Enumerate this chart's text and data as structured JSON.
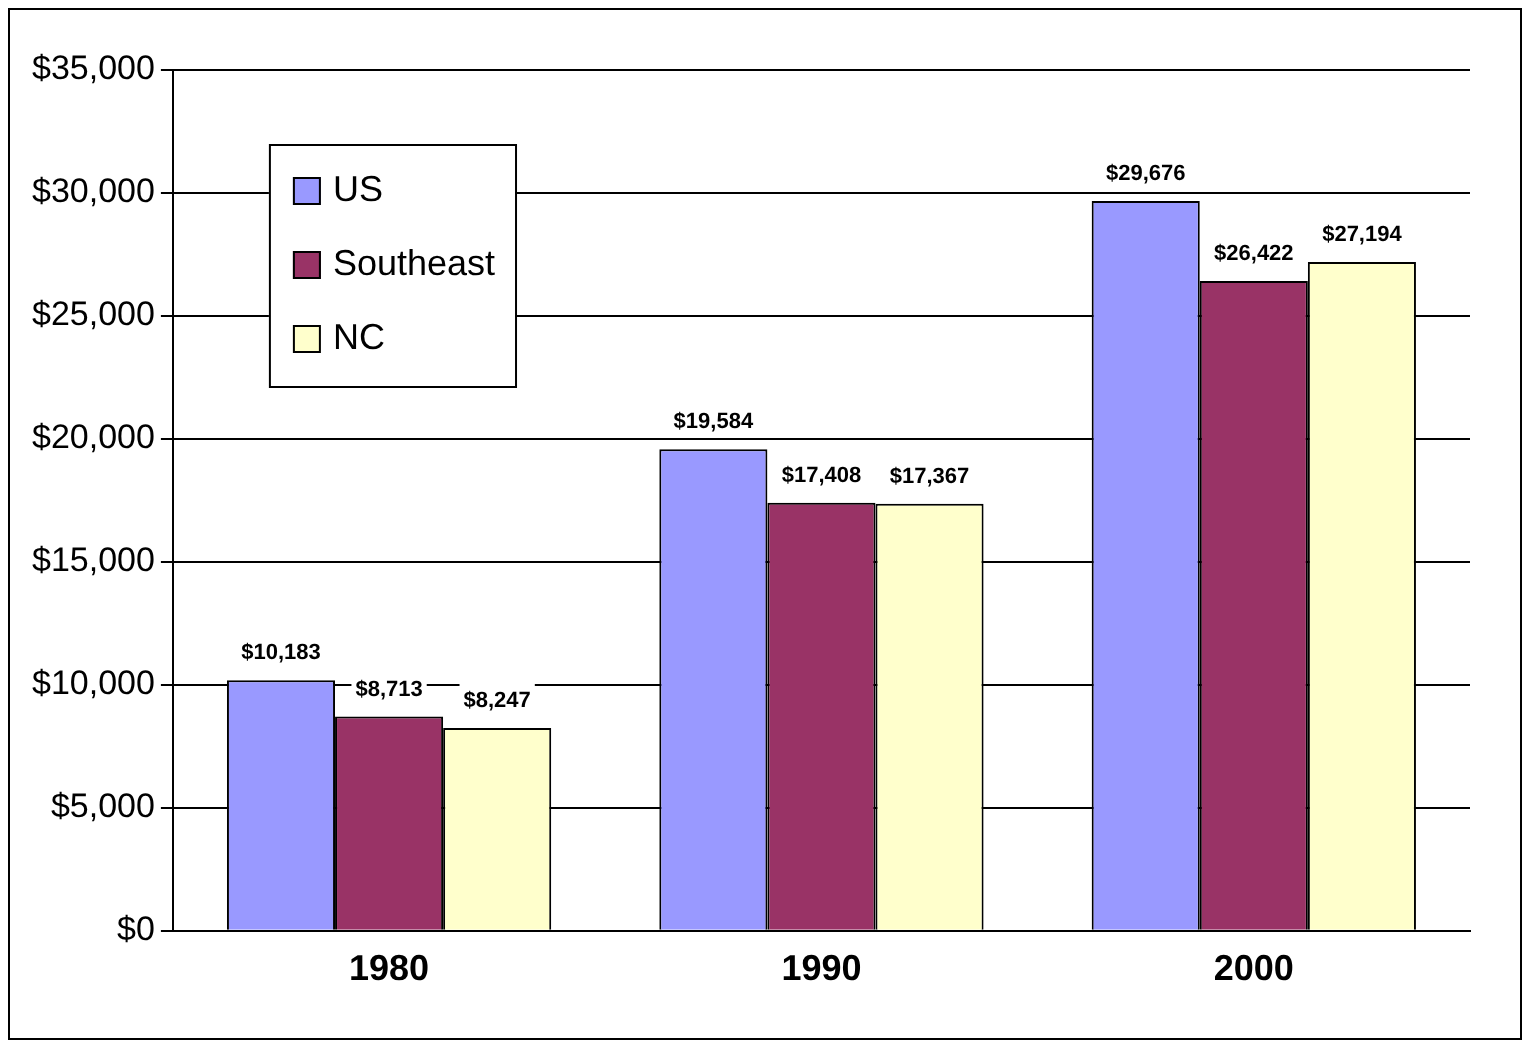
{
  "chart_data": {
    "type": "bar",
    "categories": [
      "1980",
      "1990",
      "2000"
    ],
    "series": [
      {
        "name": "US",
        "color": "#9999ff",
        "values": [
          10183,
          19584,
          29676
        ],
        "value_labels": [
          "$10,183",
          "$19,584",
          "$29,676"
        ]
      },
      {
        "name": "Southeast",
        "color": "#993366",
        "values": [
          8713,
          17408,
          26422
        ],
        "value_labels": [
          "$8,713",
          "$17,408",
          "$26,422"
        ]
      },
      {
        "name": "NC",
        "color": "#ffffcc",
        "values": [
          8247,
          17367,
          27194
        ],
        "value_labels": [
          "$8,247",
          "$17,367",
          "$27,194"
        ]
      }
    ],
    "ylim": [
      0,
      35000
    ],
    "yticks": [
      {
        "value": 0,
        "label": "$0"
      },
      {
        "value": 5000,
        "label": "$5,000"
      },
      {
        "value": 10000,
        "label": "$10,000"
      },
      {
        "value": 15000,
        "label": "$15,000"
      },
      {
        "value": 20000,
        "label": "$20,000"
      },
      {
        "value": 25000,
        "label": "$25,000"
      },
      {
        "value": 30000,
        "label": "$30,000"
      },
      {
        "value": 35000,
        "label": "$35,000"
      }
    ],
    "grid": "y",
    "legend": "top left"
  }
}
